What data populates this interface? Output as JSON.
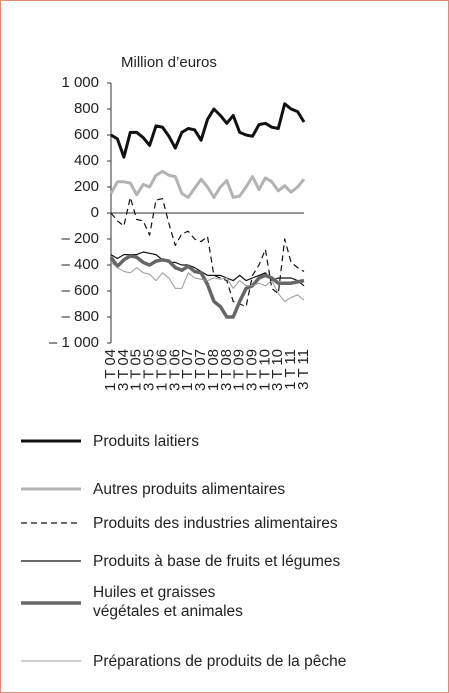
{
  "chart_data": {
    "type": "line",
    "y_label": "Million d’euros",
    "categories": [
      "1 T 04",
      null,
      "3 T 04",
      null,
      "1 T 05",
      null,
      "3 T 05",
      null,
      "1 T 06",
      null,
      "3 T 06",
      null,
      "1 T 07",
      null,
      "3 T 07",
      null,
      "1 T 08",
      null,
      "3 T 08",
      null,
      "1 T 09",
      null,
      "3 T 09",
      null,
      "1 T 10",
      null,
      "3 T 10",
      null,
      "1 T 11",
      null,
      "3 T 11"
    ],
    "ylim": [
      -1000,
      1000
    ],
    "yticks": [
      {
        "value": 1000,
        "label": "1 000"
      },
      800,
      600,
      400,
      200,
      0,
      {
        "value": -200,
        "label": "– 200"
      },
      {
        "value": -400,
        "label": "– 400"
      },
      {
        "value": -600,
        "label": "– 600"
      },
      {
        "value": -800,
        "label": "– 800"
      },
      {
        "value": -1000,
        "label": "– 1 000"
      }
    ],
    "grid": false,
    "series": [
      {
        "name": "Produits laitiers",
        "color": "#111111",
        "linewidth": 3,
        "line_style": "solid",
        "values": [
          600,
          570,
          430,
          620,
          620,
          580,
          520,
          670,
          660,
          590,
          500,
          620,
          650,
          640,
          560,
          720,
          800,
          750,
          690,
          750,
          620,
          600,
          590,
          680,
          690,
          660,
          650,
          840,
          800,
          780,
          700
        ]
      },
      {
        "name": "Autres produits alimentaires",
        "color": "#b3b3b3",
        "linewidth": 3,
        "line_style": "solid",
        "values": [
          150,
          240,
          240,
          230,
          140,
          220,
          200,
          290,
          320,
          290,
          280,
          150,
          120,
          190,
          260,
          200,
          120,
          200,
          250,
          120,
          130,
          200,
          280,
          180,
          270,
          240,
          170,
          210,
          160,
          200,
          260
        ]
      },
      {
        "name": "Produits des industries alimentaires",
        "color": "#111111",
        "linewidth": 1.2,
        "line_style": "dashed",
        "values": [
          0,
          -60,
          -100,
          120,
          -50,
          -60,
          -170,
          100,
          110,
          -80,
          -250,
          -160,
          -140,
          -200,
          -220,
          -180,
          -480,
          -500,
          -520,
          -680,
          -700,
          -720,
          -480,
          -400,
          -280,
          -580,
          -620,
          -200,
          -380,
          -420,
          -450
        ]
      },
      {
        "name": "Produits à base de fruits et légumes",
        "color": "#111111",
        "linewidth": 1.2,
        "line_style": "solid",
        "values": [
          -320,
          -350,
          -320,
          -320,
          -320,
          -300,
          -310,
          -320,
          -360,
          -380,
          -380,
          -400,
          -400,
          -420,
          -450,
          -480,
          -480,
          -480,
          -500,
          -520,
          -480,
          -520,
          -500,
          -480,
          -460,
          -520,
          -500,
          -500,
          -500,
          -520,
          -560
        ]
      },
      {
        "name": "Huiles et graisses végétales et animales",
        "color": "#666666",
        "linewidth": 3.5,
        "line_style": "solid",
        "values": [
          -340,
          -410,
          -360,
          -330,
          -340,
          -380,
          -400,
          -370,
          -360,
          -370,
          -420,
          -440,
          -410,
          -450,
          -460,
          -550,
          -680,
          -720,
          -800,
          -800,
          -680,
          -580,
          -560,
          -500,
          -480,
          -500,
          -540,
          -540,
          -540,
          -530,
          -520
        ]
      },
      {
        "name": "Préparations de produits de la pêche",
        "color": "#999999",
        "linewidth": 1,
        "line_style": "solid",
        "values": [
          -380,
          -420,
          -450,
          -460,
          -420,
          -460,
          -470,
          -520,
          -460,
          -500,
          -580,
          -580,
          -460,
          -500,
          -510,
          -520,
          -500,
          -510,
          -500,
          -580,
          -520,
          -560,
          -560,
          -540,
          -560,
          -520,
          -620,
          -680,
          -650,
          -630,
          -670
        ]
      }
    ]
  }
}
